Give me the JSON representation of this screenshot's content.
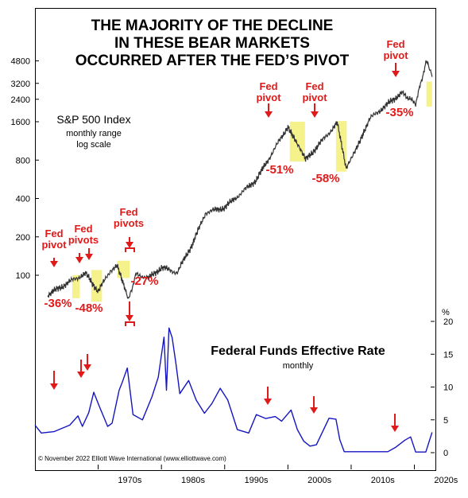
{
  "chart_data": [
    {
      "type": "line",
      "title_lines": [
        "THE MAJORITY OF THE DECLINE",
        "IN THESE BEAR MARKETS",
        "OCCURRED AFTER THE FED’S PIVOT"
      ],
      "series_label": "S&P 500 Index",
      "subtitle_lines": [
        "monthly range",
        "log scale"
      ],
      "y_scale": "log",
      "y_ticks": [
        100,
        200,
        400,
        800,
        1600,
        2400,
        3200,
        4800
      ],
      "x": [
        1962,
        1966,
        1968,
        1970,
        1972,
        1973,
        1974.8,
        1976,
        1978,
        1980,
        1982.5,
        1985,
        1987,
        1990,
        1995,
        2000,
        2002.8,
        2007.8,
        2009.2,
        2013,
        2018,
        2020.2,
        2021.9,
        2022.8
      ],
      "values": [
        70,
        92,
        103,
        75,
        110,
        118,
        64,
        102,
        95,
        115,
        105,
        180,
        310,
        340,
        560,
        1470,
        800,
        1560,
        680,
        1700,
        2700,
        2230,
        4770,
        3600
      ],
      "annotations": [
        {
          "label_lines": [
            "Fed",
            "pivot"
          ],
          "decline": "-36%"
        },
        {
          "label_lines": [
            "Fed",
            "pivots"
          ],
          "decline": "-48%"
        },
        {
          "label_lines": [
            "Fed",
            "pivots"
          ],
          "decline": "-27%"
        },
        {
          "label_lines": [
            "Fed",
            "pivot"
          ],
          "decline": "-51%"
        },
        {
          "label_lines": [
            "Fed",
            "pivot"
          ],
          "decline": "-58%"
        },
        {
          "label_lines": [
            "Fed",
            "pivot"
          ],
          "decline": "-35%"
        }
      ]
    },
    {
      "type": "line",
      "title": "Federal Funds Effective Rate",
      "subtitle": "monthly",
      "y_unit": "%",
      "y_ticks": [
        0,
        5,
        10,
        15,
        20
      ],
      "x_labels": [
        "1970s",
        "1980s",
        "1990s",
        "2000s",
        "2010s",
        "2020s"
      ],
      "x": [
        1960,
        1961,
        1963,
        1965.5,
        1966.8,
        1967.5,
        1968.5,
        1969.3,
        1970.2,
        1971.5,
        1972.2,
        1973.3,
        1973.8,
        1974.6,
        1975.5,
        1977,
        1978.5,
        1979.5,
        1980.4,
        1980.8,
        1981.2,
        1981.7,
        1982.3,
        1982.9,
        1984.3,
        1985.5,
        1986.8,
        1988,
        1989.3,
        1990.5,
        1992,
        1993.8,
        1995,
        1996.5,
        1998,
        1999,
        2000.5,
        2001.5,
        2002.5,
        2003.5,
        2004.5,
        2006.5,
        2007.6,
        2008.2,
        2008.9,
        2015.8,
        2017,
        2018.5,
        2019.4,
        2020.2,
        2021.8,
        2022.8
      ],
      "values": [
        4.2,
        3.0,
        3.2,
        4.2,
        5.6,
        4.0,
        6.1,
        9.2,
        7.0,
        4.0,
        4.5,
        9.5,
        10.7,
        12.9,
        5.8,
        5.0,
        8.5,
        11.5,
        17.6,
        9.5,
        19.0,
        17.5,
        13.5,
        9.0,
        11.0,
        8.0,
        6.0,
        7.5,
        9.8,
        8.0,
        3.5,
        3.0,
        5.8,
        5.2,
        5.5,
        4.8,
        6.5,
        3.5,
        1.75,
        1.0,
        1.2,
        5.25,
        5.1,
        2.0,
        0.15,
        0.15,
        0.8,
        1.9,
        2.4,
        0.1,
        0.1,
        3.1
      ]
    }
  ],
  "copyright": "© November 2022 Elliott Wave International (www.elliottwave.com)",
  "colors": {
    "stock_line": "#333333",
    "rate_line": "#1515c0",
    "annotation": "#e01a1a",
    "highlight": "#f5f28c"
  }
}
